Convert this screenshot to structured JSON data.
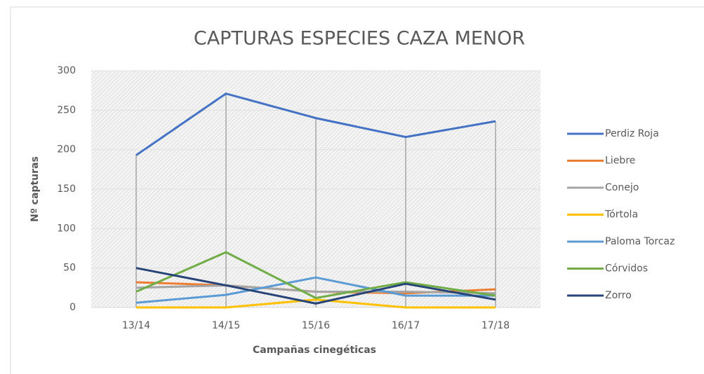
{
  "chart_data": {
    "type": "line",
    "title": "CAPTURAS ESPECIES CAZA MENOR",
    "x_label": "Campañas cinegéticas",
    "y_label": "Nº capturas",
    "categories": [
      "13/14",
      "14/15",
      "15/16",
      "16/17",
      "17/18"
    ],
    "series": [
      {
        "name": "Perdiz Roja",
        "color": "#4472c4",
        "values": [
          193,
          271,
          240,
          216,
          236
        ]
      },
      {
        "name": "Liebre",
        "color": "#ed7d31",
        "values": [
          32,
          28,
          20,
          18,
          23
        ]
      },
      {
        "name": "Conejo",
        "color": "#a5a5a5",
        "values": [
          25,
          28,
          20,
          20,
          18
        ]
      },
      {
        "name": "Tórtola",
        "color": "#ffc000",
        "values": [
          0,
          0,
          10,
          0,
          0
        ]
      },
      {
        "name": "Paloma Torcaz",
        "color": "#5b9bd5",
        "values": [
          6,
          16,
          38,
          15,
          15
        ]
      },
      {
        "name": "Córvidos",
        "color": "#70ad47",
        "values": [
          20,
          70,
          12,
          32,
          15
        ]
      },
      {
        "name": "Zorro",
        "color": "#264478",
        "values": [
          50,
          28,
          5,
          30,
          10
        ]
      }
    ],
    "ylim": [
      0,
      300
    ],
    "yticks": [
      0,
      50,
      100,
      150,
      200,
      250,
      300
    ],
    "grid": true,
    "legend": "right"
  }
}
